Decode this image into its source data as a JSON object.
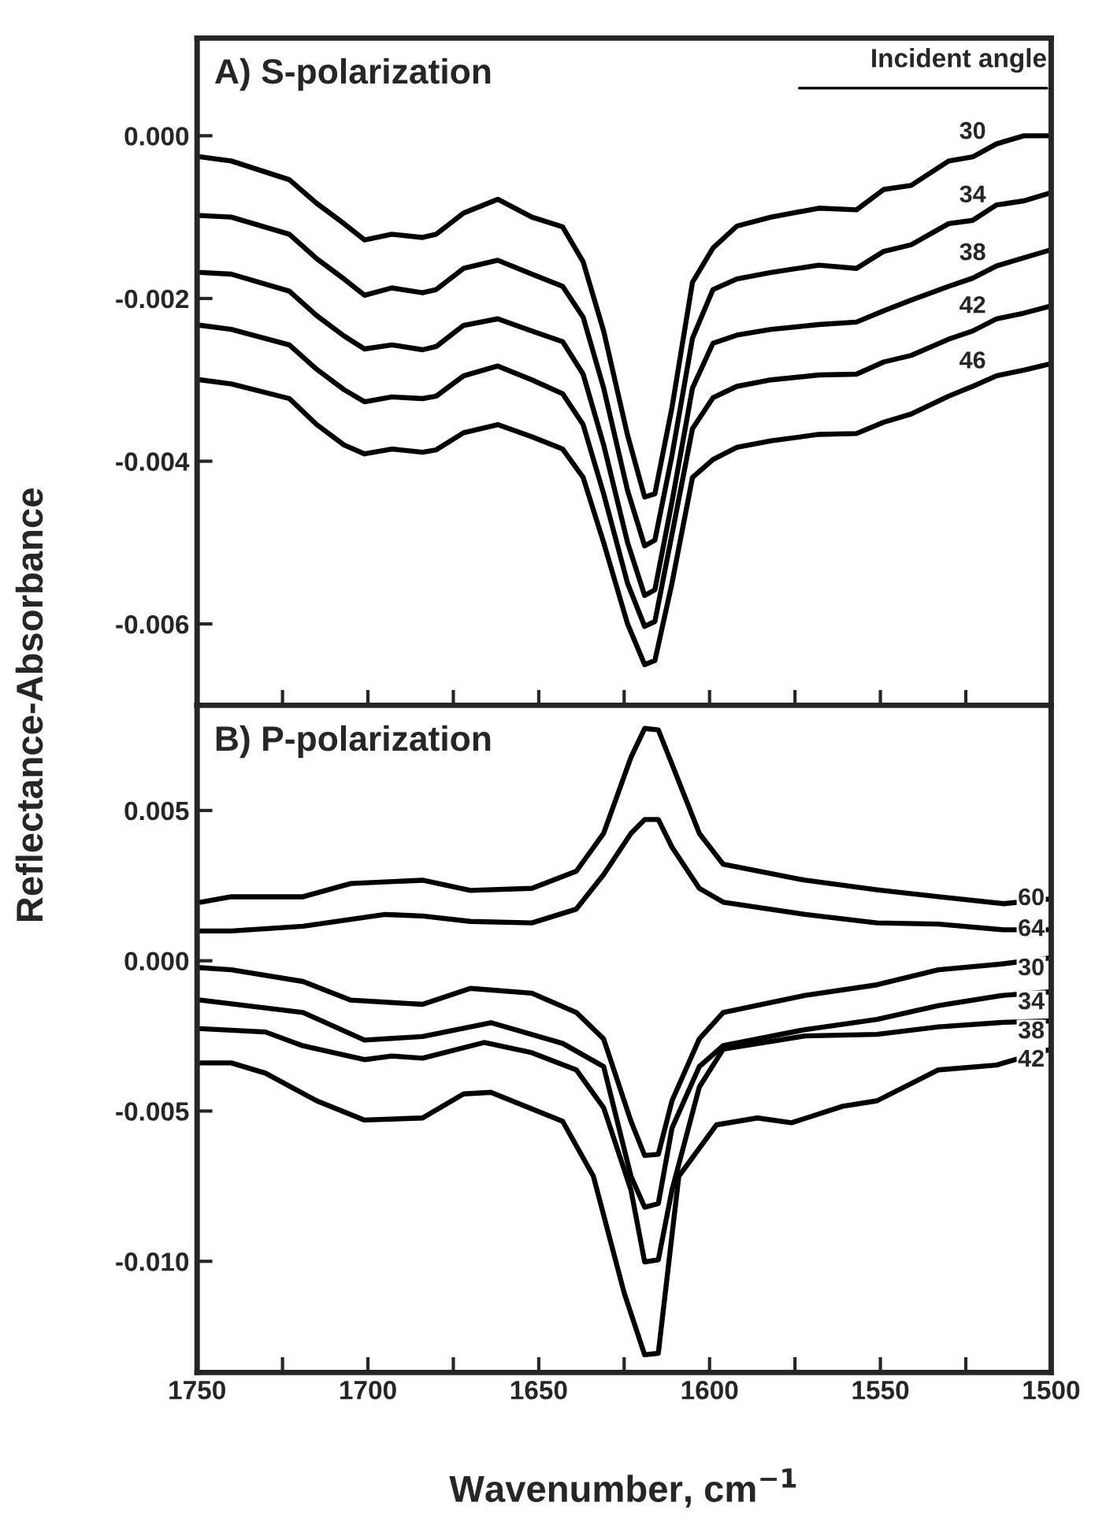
{
  "chart_data": [
    {
      "type": "line",
      "title": "A) S-polarization",
      "ylabel": "Reflectance-Absorbance",
      "legend_title": "Incident angle",
      "tick_labels": "y",
      "grid": false,
      "legend": false,
      "marker": "none",
      "line_style": "solid",
      "xlim": [
        1750,
        1500
      ],
      "ylim": [
        -0.007,
        0.0012
      ],
      "xticks": [
        {
          "value": 1750,
          "label": null
        },
        {
          "value": 1725,
          "label": null
        },
        {
          "value": 1700,
          "label": null
        },
        {
          "value": 1675,
          "label": null
        },
        {
          "value": 1650,
          "label": null
        },
        {
          "value": 1625,
          "label": null
        },
        {
          "value": 1600,
          "label": null
        },
        {
          "value": 1575,
          "label": null
        },
        {
          "value": 1550,
          "label": null
        },
        {
          "value": 1525,
          "label": null
        },
        {
          "value": 1500,
          "label": null
        }
      ],
      "yticks": [
        {
          "value": 0,
          "label": "0.000"
        },
        {
          "value": -0.002,
          "label": "-0.002"
        },
        {
          "value": -0.004,
          "label": "-0.004"
        },
        {
          "value": -0.006,
          "label": "-0.006"
        }
      ],
      "x": [
        1749,
        1740,
        1723,
        1715,
        1707,
        1701,
        1693,
        1684,
        1680,
        1672,
        1662,
        1652,
        1643,
        1637,
        1631,
        1624,
        1619,
        1616,
        1611,
        1605,
        1599,
        1592,
        1582,
        1568,
        1557,
        1549,
        1541,
        1530,
        1523,
        1516,
        1508,
        1500
      ],
      "series": [
        {
          "name": "30",
          "color": "#000000",
          "values": [
            -0.00026,
            -0.00031,
            -0.00054,
            -0.00083,
            -0.00108,
            -0.00128,
            -0.00121,
            -0.00125,
            -0.00121,
            -0.00095,
            -0.00078,
            -0.001,
            -0.00112,
            -0.00155,
            -0.0024,
            -0.00368,
            -0.00444,
            -0.0044,
            -0.00334,
            -0.0018,
            -0.00138,
            -0.00111,
            -0.001,
            -0.00089,
            -0.00091,
            -0.00066,
            -0.00061,
            -0.00031,
            -0.00026,
            -0.0001,
            0,
            0
          ]
        },
        {
          "name": "34",
          "color": "#000000",
          "values": [
            -0.00098,
            -0.001,
            -0.00121,
            -0.00151,
            -0.00176,
            -0.00196,
            -0.00187,
            -0.00193,
            -0.00189,
            -0.00163,
            -0.00153,
            -0.0017,
            -0.00185,
            -0.00223,
            -0.0031,
            -0.00436,
            -0.00504,
            -0.00497,
            -0.00393,
            -0.00249,
            -0.00189,
            -0.00176,
            -0.00168,
            -0.00159,
            -0.00163,
            -0.00142,
            -0.00134,
            -0.00108,
            -0.00104,
            -0.00085,
            -0.0008,
            -0.0007
          ]
        },
        {
          "name": "38",
          "color": "#000000",
          "values": [
            -0.00168,
            -0.0017,
            -0.00191,
            -0.00221,
            -0.00246,
            -0.00262,
            -0.00257,
            -0.00263,
            -0.00259,
            -0.00233,
            -0.00225,
            -0.0024,
            -0.00253,
            -0.00293,
            -0.0038,
            -0.005,
            -0.00565,
            -0.00558,
            -0.0045,
            -0.0031,
            -0.00255,
            -0.00245,
            -0.00238,
            -0.00232,
            -0.00229,
            -0.00215,
            -0.00202,
            -0.00185,
            -0.00175,
            -0.0016,
            -0.0015,
            -0.0014
          ]
        },
        {
          "name": "42",
          "color": "#000000",
          "values": [
            -0.00233,
            -0.00238,
            -0.00257,
            -0.00287,
            -0.00312,
            -0.00327,
            -0.00321,
            -0.00323,
            -0.0032,
            -0.00295,
            -0.00283,
            -0.003,
            -0.00317,
            -0.00355,
            -0.0044,
            -0.0055,
            -0.00603,
            -0.00597,
            -0.0049,
            -0.0036,
            -0.00322,
            -0.00308,
            -0.003,
            -0.00294,
            -0.00293,
            -0.00278,
            -0.0027,
            -0.0025,
            -0.0024,
            -0.00225,
            -0.00218,
            -0.00209
          ]
        },
        {
          "name": "46",
          "color": "#000000",
          "values": [
            -0.003,
            -0.00305,
            -0.00323,
            -0.00355,
            -0.0038,
            -0.00391,
            -0.00385,
            -0.00389,
            -0.00386,
            -0.00365,
            -0.00355,
            -0.0037,
            -0.00385,
            -0.0042,
            -0.005,
            -0.006,
            -0.0065,
            -0.00645,
            -0.0055,
            -0.0042,
            -0.00398,
            -0.00383,
            -0.00375,
            -0.00367,
            -0.00366,
            -0.00352,
            -0.00342,
            -0.0032,
            -0.00308,
            -0.00295,
            -0.00288,
            -0.0028
          ]
        }
      ]
    },
    {
      "type": "line",
      "title": "B) P-polarization",
      "xlabel": "Wavenumber, cm$^{−1}$",
      "grid": false,
      "legend": false,
      "marker": "none",
      "line_style": "solid",
      "xlim": [
        1750,
        1500
      ],
      "ylim": [
        -0.0137,
        0.0085
      ],
      "xticks": [
        1750,
        {
          "value": 1725,
          "label": null
        },
        1700,
        {
          "value": 1675,
          "label": null
        },
        1650,
        {
          "value": 1625,
          "label": null
        },
        1600,
        {
          "value": 1575,
          "label": null
        },
        1550,
        {
          "value": 1525,
          "label": null
        },
        1500
      ],
      "yticks": [
        {
          "value": 0.005,
          "label": "0.005"
        },
        {
          "value": 0,
          "label": "0.000"
        },
        {
          "value": -0.005,
          "label": "-0.005"
        },
        {
          "value": -0.01,
          "label": "-0.010"
        }
      ],
      "series": [
        {
          "name": "60",
          "color": "#000000",
          "x": [
            1749,
            1740,
            1719,
            1705,
            1684,
            1670,
            1652,
            1639,
            1631,
            1623,
            1619,
            1615,
            1611,
            1603,
            1596,
            1572,
            1551,
            1533,
            1514,
            1500
          ],
          "values": [
            0.00195,
            0.00213,
            0.00213,
            0.00257,
            0.00268,
            0.00234,
            0.00241,
            0.00298,
            0.00424,
            0.00677,
            0.00773,
            0.00768,
            0.00654,
            0.00424,
            0.00321,
            0.00268,
            0.00236,
            0.00213,
            0.0019,
            0.00206
          ]
        },
        {
          "name": "64",
          "color": "#000000",
          "x": [
            1749,
            1740,
            1719,
            1695,
            1684,
            1670,
            1652,
            1639,
            1631,
            1623,
            1619,
            1615,
            1611,
            1603,
            1596,
            1572,
            1551,
            1533,
            1514,
            1500
          ],
          "values": [
            0.00099,
            0.00099,
            0.00115,
            0.00154,
            0.00149,
            0.00131,
            0.00126,
            0.00172,
            0.00287,
            0.00424,
            0.0047,
            0.0047,
            0.00378,
            0.00241,
            0.00195,
            0.00154,
            0.00126,
            0.00122,
            0.00103,
            0.00103
          ]
        },
        {
          "name": "30",
          "color": "#000000",
          "x": [
            1749,
            1740,
            1719,
            1705,
            1684,
            1670,
            1652,
            1639,
            1631,
            1623,
            1619,
            1615,
            1611,
            1603,
            1596,
            1572,
            1551,
            1533,
            1514,
            1500
          ],
          "values": [
            -0.00023,
            -0.0003,
            -0.00069,
            -0.00131,
            -0.00145,
            -0.00092,
            -0.00108,
            -0.00172,
            -0.0026,
            -0.00534,
            -0.00648,
            -0.00644,
            -0.00466,
            -0.0026,
            -0.00172,
            -0.00115,
            -0.0008,
            -0.0003,
            -0.0001,
            0.0001
          ]
        },
        {
          "name": "34",
          "color": "#000000",
          "x": [
            1749,
            1719,
            1701,
            1684,
            1664,
            1643,
            1631,
            1623,
            1619,
            1615,
            1611,
            1603,
            1596,
            1572,
            1551,
            1533,
            1514,
            1500
          ],
          "values": [
            -0.00131,
            -0.00172,
            -0.00264,
            -0.00252,
            -0.00206,
            -0.00275,
            -0.00352,
            -0.00717,
            -0.0082,
            -0.00808,
            -0.00557,
            -0.00352,
            -0.00282,
            -0.00229,
            -0.00195,
            -0.00149,
            -0.00115,
            -0.00103
          ]
        },
        {
          "name": "38",
          "color": "#000000",
          "x": [
            1749,
            1730,
            1719,
            1701,
            1693,
            1684,
            1666,
            1652,
            1639,
            1631,
            1623,
            1619,
            1615,
            1611,
            1603,
            1596,
            1572,
            1551,
            1533,
            1514,
            1500
          ],
          "values": [
            -0.00226,
            -0.00237,
            -0.00283,
            -0.00329,
            -0.00317,
            -0.00324,
            -0.00272,
            -0.00306,
            -0.00363,
            -0.00489,
            -0.00763,
            -0.01002,
            -0.00995,
            -0.00763,
            -0.0042,
            -0.00294,
            -0.0025,
            -0.00245,
            -0.0022,
            -0.00205,
            -0.002
          ]
        },
        {
          "name": "42",
          "color": "#000000",
          "x": [
            1749,
            1740,
            1730,
            1715,
            1701,
            1684,
            1672,
            1664,
            1643,
            1634,
            1625,
            1619,
            1615,
            1609,
            1598,
            1586,
            1576,
            1561,
            1551,
            1533,
            1516,
            1500
          ],
          "values": [
            -0.0034,
            -0.0034,
            -0.00374,
            -0.00466,
            -0.0053,
            -0.00523,
            -0.00443,
            -0.00438,
            -0.00534,
            -0.00717,
            -0.01105,
            -0.01311,
            -0.01306,
            -0.00717,
            -0.00546,
            -0.00523,
            -0.00539,
            -0.00484,
            -0.00466,
            -0.00363,
            -0.00347,
            -0.00294
          ]
        }
      ]
    }
  ]
}
